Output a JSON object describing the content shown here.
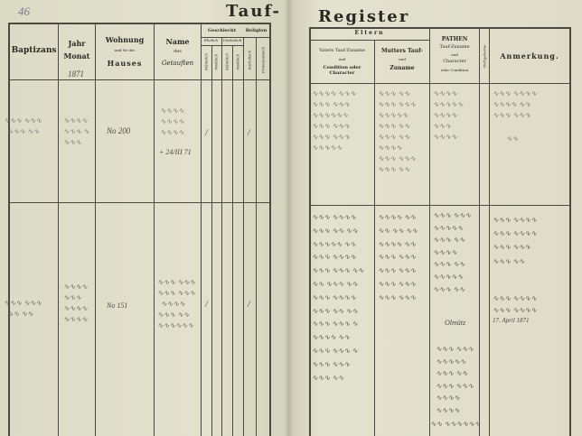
{
  "page_number": "46",
  "title_left": "Tauf-",
  "title_right": "Register",
  "left_headers": {
    "baptizans": "Baptizans",
    "jahr": "Jahr",
    "monat": "Monat",
    "year_written": "1871",
    "wohnung": "Wohnung",
    "nr_des": "und Nr des",
    "hauses": "Hauses",
    "name": "Name",
    "des": "des",
    "getauften": "Getauften",
    "geschlecht": "Geschlecht",
    "religion": "Religion",
    "ehelich": "Ehelich",
    "unehelich": "Unehelich",
    "maennlich": "Männlich",
    "weiblich": "Weiblich",
    "katholisch": "Katholisch",
    "protestantisch": "Protestantisch"
  },
  "right_headers": {
    "eltern": "Eltern",
    "vater_1": "Vaters Tauf-Zuname",
    "vater_2": "und",
    "vater_3": "Condition oder Character",
    "mutter_1": "Mutters Tauf-",
    "mutter_2": "und",
    "mutter_3": "Zuname",
    "pathen_1": "PATHEN",
    "pathen_2": "Tauf-Zuname",
    "pathen_3": "und",
    "pathen_4": "Character",
    "pathen_5": "oder Condition",
    "todtgeborne": "Todtgeborne",
    "anmerkung": "Anmerkung."
  },
  "entries": [
    {
      "house": "No 200",
      "date_note": "+ 24/III 71",
      "sex_mark": "/",
      "religion_mark": "/"
    },
    {
      "house": "No 151",
      "sex_mark": "/",
      "religion_mark": "/",
      "pathen_note": "Olmütz",
      "remark_date": "17. April 1871"
    }
  ]
}
